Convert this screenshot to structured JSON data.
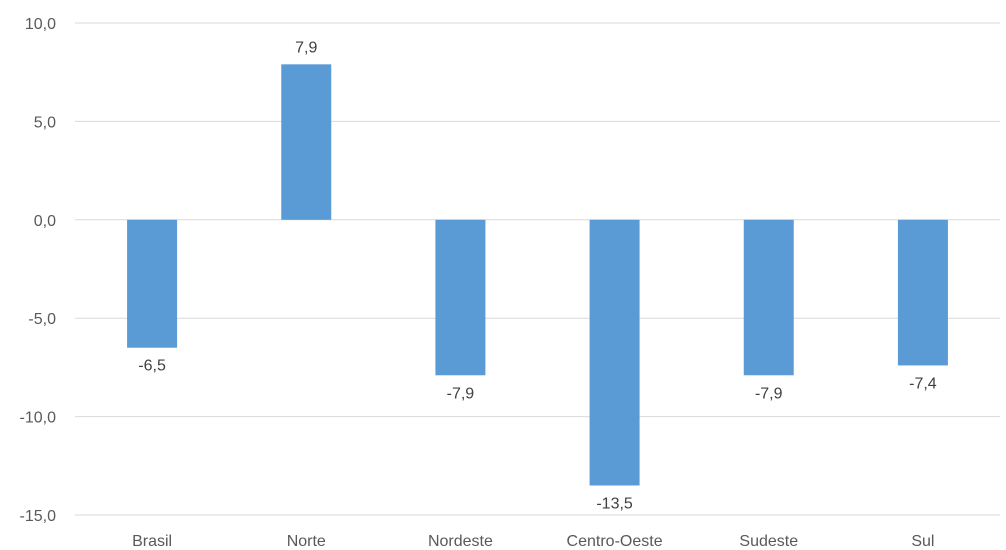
{
  "chart_data": {
    "type": "bar",
    "categories": [
      "Brasil",
      "Norte",
      "Nordeste",
      "Centro-Oeste",
      "Sudeste",
      "Sul"
    ],
    "values": [
      -6.5,
      7.9,
      -7.9,
      -13.5,
      -7.9,
      -7.4
    ],
    "data_labels": [
      "-6,5",
      "7,9",
      "-7,9",
      "-13,5",
      "-7,9",
      "-7,4"
    ],
    "yticks": [
      10,
      5,
      0,
      -5,
      -10,
      -15
    ],
    "ytick_labels": [
      "10,0",
      "5,0",
      "0,0",
      "-5,0",
      "-10,0",
      "-15,0"
    ],
    "ylim": [
      -15,
      10
    ],
    "grid": true,
    "bar_color": "#5b9bd5",
    "title": "",
    "xlabel": "",
    "ylabel": ""
  }
}
